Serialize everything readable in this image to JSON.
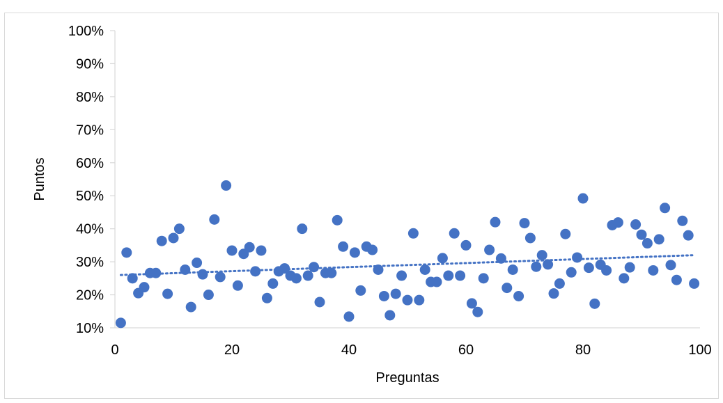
{
  "chart_data": {
    "type": "scatter",
    "title": "",
    "xlabel": "Preguntas",
    "ylabel": "Puntos",
    "xlim": [
      0,
      100
    ],
    "ylim": [
      10,
      100
    ],
    "xticks": [
      0,
      20,
      40,
      60,
      80,
      100
    ],
    "yticks": [
      "10%",
      "20%",
      "30%",
      "40%",
      "50%",
      "60%",
      "70%",
      "80%",
      "90%",
      "100%"
    ],
    "grid": false,
    "legend": "none",
    "marker_color": "#4472C4",
    "trendline": {
      "type": "linear",
      "style": "dotted",
      "color": "#4472C4",
      "x": [
        1,
        99
      ],
      "y": [
        26,
        32
      ]
    },
    "series": [
      {
        "x": [
          1,
          2,
          3,
          4,
          5,
          6,
          7,
          8,
          9,
          10,
          11,
          12,
          13,
          14,
          15,
          16,
          17,
          18,
          19,
          20,
          21,
          22,
          23,
          24,
          25,
          26,
          27,
          28,
          29,
          30,
          31,
          32,
          33,
          34,
          35,
          36,
          37,
          38,
          39,
          40,
          41,
          42,
          43,
          44,
          45,
          46,
          47,
          48,
          49,
          50,
          51,
          52,
          53,
          54,
          55,
          56,
          57,
          58,
          59,
          60,
          61,
          62,
          63,
          64,
          65,
          66,
          67,
          68,
          69,
          70,
          71,
          72,
          73,
          74,
          75,
          76,
          77,
          78,
          79,
          80,
          81,
          82,
          83,
          84,
          85,
          86,
          87,
          88,
          89,
          90,
          91,
          92,
          93,
          94,
          95,
          96,
          97,
          98,
          99
        ],
        "y": [
          11.5,
          32.8,
          25,
          20.5,
          22.3,
          26.6,
          26.6,
          36.3,
          20.3,
          37.2,
          40,
          27.6,
          16.3,
          29.7,
          26.2,
          20,
          42.8,
          25.4,
          53.1,
          33.4,
          22.8,
          32.4,
          34.4,
          27.1,
          33.4,
          19,
          23.4,
          27.1,
          28,
          25.8,
          25,
          40,
          25.8,
          28.4,
          17.8,
          26.6,
          26.6,
          42.6,
          34.6,
          13.4,
          32.8,
          21.3,
          34.6,
          33.6,
          27.6,
          19.6,
          13.8,
          20.3,
          25.8,
          18.4,
          38.6,
          18.4,
          27.6,
          23.9,
          23.9,
          31.1,
          25.8,
          38.6,
          25.8,
          35,
          17.4,
          14.8,
          25,
          33.6,
          42,
          31,
          22.1,
          27.6,
          19.6,
          41.7,
          37.2,
          28.5,
          32,
          29.2,
          20.4,
          23.4,
          38.4,
          26.8,
          31.3,
          49.2,
          28.2,
          17.3,
          29.1,
          27.4,
          41.1,
          41.9,
          25,
          28.3,
          41.3,
          38.2,
          35.6,
          27.4,
          36.8,
          46.3,
          29,
          24.5,
          42.4,
          38,
          23.4
        ]
      }
    ]
  }
}
